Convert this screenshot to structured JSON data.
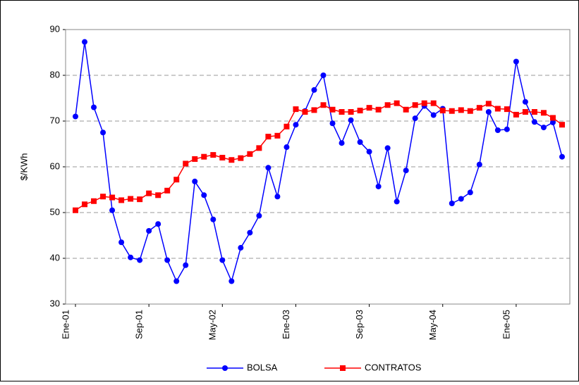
{
  "chart_data": {
    "type": "line",
    "y_label": "$/KWh",
    "categories": [
      "Ene-01",
      null,
      null,
      null,
      null,
      null,
      null,
      null,
      "Sep-01",
      null,
      null,
      null,
      null,
      null,
      null,
      null,
      "May-02",
      null,
      null,
      null,
      null,
      null,
      null,
      null,
      "Ene-03",
      null,
      null,
      null,
      null,
      null,
      null,
      null,
      "Sep-03",
      null,
      null,
      null,
      null,
      null,
      null,
      null,
      "May-04",
      null,
      null,
      null,
      null,
      null,
      null,
      null,
      "Ene-05",
      null,
      null,
      null,
      null,
      null
    ],
    "series": [
      {
        "name": "BOLSA",
        "color": "#0000ff",
        "marker": "circle",
        "values": [
          71,
          87.3,
          73,
          67.5,
          50.5,
          43.5,
          40.2,
          39.6,
          46,
          47.5,
          39.6,
          35,
          38.5,
          56.8,
          53.8,
          48.5,
          39.6,
          35,
          42.3,
          45.6,
          49.3,
          59.8,
          53.5,
          64.3,
          69.2,
          72.2,
          76.8,
          80,
          69.5,
          65.2,
          70.2,
          65.4,
          63.3,
          55.7,
          64.1,
          52.4,
          59.2,
          70.6,
          73.3,
          71.3,
          72.7,
          52,
          53,
          54.4,
          60.5,
          72,
          68,
          68.2,
          83,
          74.2,
          69.8,
          68.6,
          69.7,
          62.2
        ]
      },
      {
        "name": "CONTRATOS",
        "color": "#ff0000",
        "marker": "square",
        "values": [
          50.5,
          51.8,
          52.5,
          53.5,
          53.3,
          52.7,
          53,
          52.9,
          54.2,
          53.8,
          54.8,
          57.2,
          60.7,
          61.7,
          62.2,
          62.6,
          62,
          61.5,
          61.9,
          62.8,
          64.1,
          66.6,
          66.8,
          68.8,
          72.6,
          72,
          72.4,
          73.5,
          72.5,
          72,
          72,
          72.3,
          72.9,
          72.5,
          73.5,
          73.9,
          72.5,
          73.5,
          73.9,
          73.9,
          72.3,
          72.2,
          72.4,
          72.2,
          72.9,
          73.8,
          72.7,
          72.6,
          71.4,
          72,
          72,
          71.8,
          70.7,
          69.2
        ]
      }
    ],
    "ylim": [
      30,
      90
    ],
    "yticks": [
      30,
      40,
      50,
      60,
      70,
      80,
      90
    ],
    "grid": true,
    "legend": "bottom"
  }
}
